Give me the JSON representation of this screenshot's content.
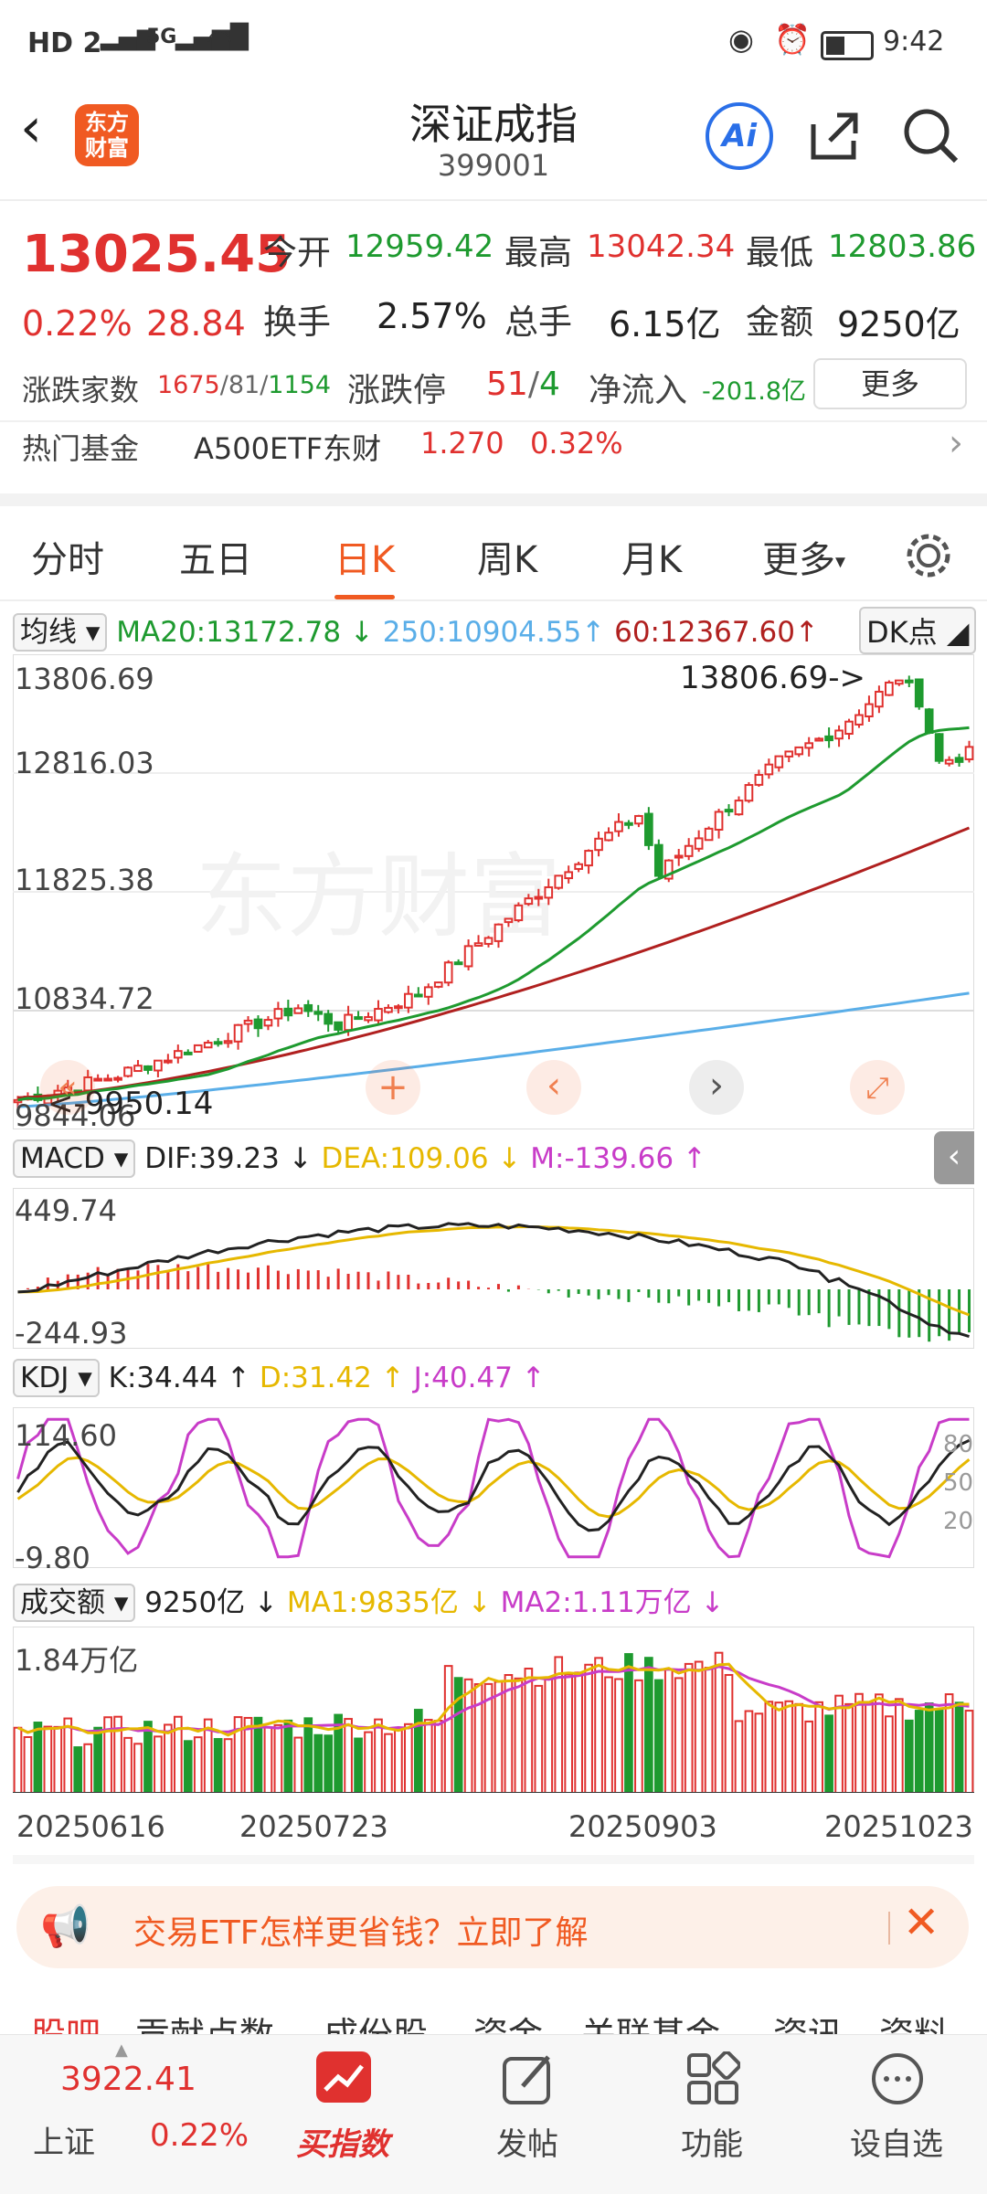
{
  "status_bar": {
    "left": "HD 2",
    "signal": "5G",
    "time": "9:42"
  },
  "header": {
    "title": "深证成指",
    "code": "399001",
    "logo_text": "东方财富",
    "ai_label": "Ai"
  },
  "quote": {
    "price": "13025.45",
    "change_pct": "0.22%",
    "change_val": "28.84",
    "open_label": "今开",
    "open": "12959.42",
    "high_label": "最高",
    "high": "13042.34",
    "low_label": "最低",
    "low": "12803.86",
    "turnover_label": "换手",
    "turnover": "2.57%",
    "volume_label": "总手",
    "volume": "6.15亿",
    "amount_label": "金额",
    "amount": "9250亿",
    "breadth_label": "涨跌家数",
    "breadth_up": "1675",
    "breadth_flat": "81",
    "breadth_down": "1154",
    "limit_label": "涨跌停",
    "limit_up": "51",
    "limit_down": "4",
    "netflow_label": "净流入",
    "netflow": "-201.8亿",
    "more_label": "更多",
    "hotfund_label": "热门基金",
    "hotfund_name": "A500ETF东财",
    "hotfund_price": "1.270",
    "hotfund_pct": "0.32%"
  },
  "tabs": {
    "items": [
      "分时",
      "五日",
      "日K",
      "周K",
      "月K",
      "更多"
    ],
    "active": "日K"
  },
  "kchart": {
    "ma_dropdown": "均线",
    "ma20": "MA20:13172.78",
    "ma250": "250:10904.55",
    "ma60": "60:12367.60",
    "dk_label": "DK点",
    "y_labels": [
      "13806.69",
      "12816.03",
      "11825.38",
      "10834.72",
      "9844.06"
    ],
    "max_marker": "13806.69->",
    "min_marker": "<-9950.14",
    "watermark": "东方财富"
  },
  "macd": {
    "dropdown": "MACD",
    "dif": "DIF:39.23",
    "dea": "DEA:109.06",
    "m": "M:-139.66",
    "y_top": "449.74",
    "y_bottom": "-244.93"
  },
  "kdj": {
    "dropdown": "KDJ",
    "k": "K:34.44",
    "d": "D:31.42",
    "j": "J:40.47",
    "y_top": "114.60",
    "y_bottom": "-9.80",
    "levels": [
      "80",
      "50",
      "20"
    ]
  },
  "volume": {
    "dropdown": "成交额",
    "value": "9250亿",
    "ma1": "MA1:9835亿",
    "ma2": "MA2:1.11万亿",
    "y_top": "1.84万亿"
  },
  "dates": [
    "20250616",
    "20250723",
    "20250903",
    "20251023"
  ],
  "banner": {
    "text": "交易ETF怎样更省钱？立即了解"
  },
  "lower_tabs": [
    "股吧",
    "贡献点数",
    "成份股",
    "资金",
    "关联基金",
    "资讯",
    "资料"
  ],
  "bottom_nav": {
    "index_value": "3922.41",
    "index_name": "上证",
    "index_pct": "0.22%",
    "items": [
      "买指数",
      "发帖",
      "功能",
      "设自选"
    ]
  },
  "colors": {
    "up": "#e0312f",
    "down": "#1e9a2f",
    "accent": "#f05a22",
    "ma20": "#1e9a2f",
    "ma60": "#b0201f",
    "ma250": "#5aaee8",
    "dea": "#e6b800",
    "kdj_j": "#c83cc8"
  }
}
